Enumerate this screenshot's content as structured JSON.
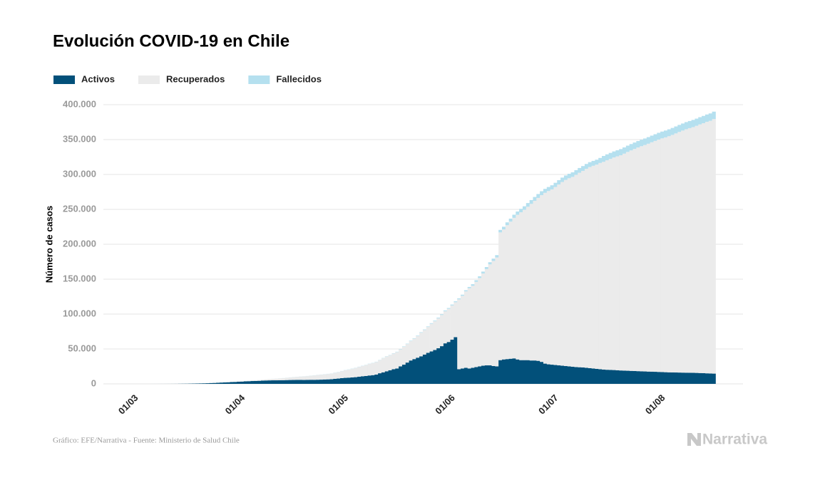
{
  "chart_data": {
    "type": "stacked-bar",
    "title": "Evolución COVID-19 en Chile",
    "y_label": "Número de casos",
    "source": "Gráfico: EFE/Narrativa - Fuente: Ministerio de Salud Chile",
    "logo": "Narrativa",
    "grid": true,
    "ylim": [
      0,
      400000
    ],
    "yticks": [
      0,
      {
        "value": 50000,
        "label": "50.000"
      },
      {
        "value": 100000,
        "label": "100.000"
      },
      {
        "value": 150000,
        "label": "150.000"
      },
      {
        "value": 200000,
        "label": "200.000"
      },
      {
        "value": 250000,
        "label": "250.000"
      },
      {
        "value": 300000,
        "label": "300.000"
      },
      {
        "value": 350000,
        "label": "350.000"
      },
      {
        "value": 400000,
        "label": "400.000"
      }
    ],
    "categories": [
      "01/03",
      null,
      null,
      null,
      null,
      null,
      null,
      null,
      null,
      null,
      null,
      null,
      null,
      null,
      null,
      null,
      null,
      null,
      null,
      null,
      null,
      null,
      null,
      null,
      null,
      null,
      null,
      null,
      null,
      null,
      null,
      "01/04",
      null,
      null,
      null,
      null,
      null,
      null,
      null,
      null,
      null,
      null,
      null,
      null,
      null,
      null,
      null,
      null,
      null,
      null,
      null,
      null,
      null,
      null,
      null,
      null,
      null,
      null,
      null,
      null,
      null,
      "01/05",
      null,
      null,
      null,
      null,
      null,
      null,
      null,
      null,
      null,
      null,
      null,
      null,
      null,
      null,
      null,
      null,
      null,
      null,
      null,
      null,
      null,
      null,
      null,
      null,
      null,
      null,
      null,
      null,
      null,
      null,
      "01/06",
      null,
      null,
      null,
      null,
      null,
      null,
      null,
      null,
      null,
      null,
      null,
      null,
      null,
      null,
      null,
      null,
      null,
      null,
      null,
      null,
      null,
      null,
      null,
      null,
      null,
      null,
      null,
      null,
      null,
      "01/07",
      null,
      null,
      null,
      null,
      null,
      null,
      null,
      null,
      null,
      null,
      null,
      null,
      null,
      null,
      null,
      null,
      null,
      null,
      null,
      null,
      null,
      null,
      null,
      null,
      null,
      null,
      null,
      null,
      null,
      null,
      "01/08",
      null,
      null,
      null,
      null,
      null,
      null,
      null,
      null,
      null,
      null,
      null,
      null,
      null,
      null,
      null,
      null,
      null
    ],
    "series": [
      {
        "name": "Activos",
        "color": "#02507a",
        "values": [
          0,
          0,
          1,
          3,
          4,
          5,
          7,
          10,
          13,
          17,
          23,
          33,
          43,
          61,
          75,
          156,
          201,
          238,
          342,
          434,
          536,
          631,
          744,
          909,
          1122,
          1280,
          1562,
          1842,
          2057,
          2285,
          2570,
          2781,
          3051,
          3288,
          3606,
          3819,
          4050,
          4175,
          4383,
          4641,
          4865,
          4990,
          5074,
          5076,
          5179,
          5242,
          5403,
          5515,
          5569,
          5617,
          5692,
          5570,
          5750,
          5840,
          5805,
          5931,
          6035,
          6288,
          6448,
          6612,
          7216,
          7600,
          8200,
          8600,
          8900,
          9200,
          9600,
          10200,
          10900,
          11300,
          12000,
          12500,
          13300,
          15200,
          16500,
          18000,
          19500,
          21000,
          22000,
          25000,
          27500,
          30500,
          33500,
          35500,
          37500,
          39500,
          42000,
          44500,
          46500,
          48500,
          51000,
          54000,
          58046,
          59998,
          63353,
          66936,
          21000,
          22000,
          23000,
          22000,
          23000,
          24000,
          25000,
          26000,
          26500,
          26500,
          25500,
          25000,
          34000,
          35000,
          35500,
          36000,
          36500,
          35000,
          34000,
          34000,
          34000,
          33500,
          33500,
          33000,
          31500,
          29000,
          28000,
          27500,
          27000,
          26500,
          26000,
          25500,
          25000,
          24500,
          24000,
          23800,
          23500,
          23000,
          22500,
          22000,
          21500,
          21000,
          20500,
          20200,
          20000,
          19800,
          19500,
          19200,
          19000,
          18800,
          18600,
          18400,
          18200,
          18000,
          17800,
          17600,
          17500,
          17300,
          17100,
          16900,
          16700,
          16500,
          16400,
          16300,
          16200,
          16100,
          16000,
          15900,
          15800,
          15700,
          15500,
          15300,
          15100,
          14900,
          14700
        ]
      },
      {
        "name": "Recuperados",
        "color": "#ebebeb",
        "values": [
          0,
          0,
          0,
          0,
          0,
          0,
          0,
          0,
          0,
          0,
          0,
          0,
          0,
          0,
          0,
          0,
          0,
          0,
          0,
          0,
          0,
          0,
          0,
          11,
          17,
          22,
          43,
          61,
          75,
          156,
          156,
          234,
          335,
          427,
          528,
          618,
          728,
          898,
          1115,
          1274,
          1571,
          1864,
          2059,
          2367,
          2646,
          2937,
          3299,
          3621,
          4035,
          4338,
          4676,
          5115,
          5386,
          5804,
          6327,
          6746,
          7107,
          7327,
          7710,
          8057,
          8580,
          9174,
          9988,
          10803,
          11473,
          12541,
          13167,
          14096,
          14778,
          15615,
          16554,
          17240,
          18086,
          18835,
          20172,
          21148,
          21507,
          22331,
          23581,
          24070,
          25573,
          26492,
          27727,
          29220,
          30884,
          33736,
          35155,
          36948,
          39553,
          41194,
          42861,
          44634,
          46000,
          47500,
          49000,
          50000,
          100051,
          104204,
          109513,
          115038,
          117495,
          122166,
          126617,
          132198,
          137985,
          144692,
          150613,
          156066,
          183013,
          186262,
          191800,
          196453,
          201376,
          207232,
          211864,
          215348,
          219717,
          224351,
          228691,
          233407,
          238849,
          244705,
          248290,
          251121,
          255038,
          259155,
          263224,
          266673,
          269585,
          272010,
          275534,
          278693,
          281648,
          285103,
          288178,
          290469,
          292636,
          295512,
          297594,
          300143,
          302297,
          304552,
          306461,
          308364,
          310845,
          313484,
          315900,
          318203,
          320483,
          322522,
          324398,
          326479,
          328634,
          330750,
          332924,
          334848,
          336470,
          338334,
          340313,
          342514,
          344746,
          346817,
          348839,
          350476,
          352069,
          353994,
          356216,
          358144,
          360333,
          362024,
          364666
        ]
      },
      {
        "name": "Fallecidos",
        "color": "#b5e0ef",
        "values": [
          0,
          0,
          0,
          0,
          0,
          0,
          0,
          0,
          0,
          0,
          0,
          0,
          0,
          0,
          0,
          0,
          0,
          0,
          0,
          0,
          1,
          1,
          2,
          2,
          3,
          4,
          5,
          6,
          7,
          8,
          12,
          16,
          18,
          22,
          27,
          34,
          37,
          43,
          48,
          57,
          65,
          73,
          80,
          82,
          92,
          94,
          105,
          116,
          126,
          133,
          139,
          147,
          160,
          168,
          174,
          181,
          189,
          198,
          207,
          216,
          227,
          234,
          247,
          260,
          270,
          275,
          281,
          285,
          294,
          304,
          312,
          323,
          335,
          346,
          368,
          394,
          421,
          450,
          478,
          509,
          544,
          589,
          630,
          673,
          718,
          761,
          806,
          841,
          890,
          944,
          997,
          1054,
          1113,
          1188,
          1275,
          1356,
          1448,
          1541,
          1637,
          1808,
          2264,
          2290,
          2475,
          2648,
          2870,
          3101,
          3323,
          3383,
          3615,
          3841,
          4093,
          4295,
          4479,
          4731,
          4903,
          5068,
          5347,
          5509,
          5575,
          5575,
          5650,
          5688,
          5753,
          5920,
          6051,
          6192,
          6308,
          6384,
          6434,
          6573,
          6682,
          6781,
          6881,
          6938,
          6979,
          7024,
          7069,
          7186,
          8445,
          8503,
          8633,
          8677,
          8722,
          8838,
          8914,
          9020,
          9092,
          9187,
          9240,
          9278,
          9377,
          9457,
          9533,
          9608,
          9707,
          9745,
          9792,
          9889,
          9958,
          10011,
          10077,
          10139,
          10205,
          10240,
          10299,
          10340,
          10395,
          10458,
          10513,
          10578,
          10671
        ]
      }
    ]
  }
}
